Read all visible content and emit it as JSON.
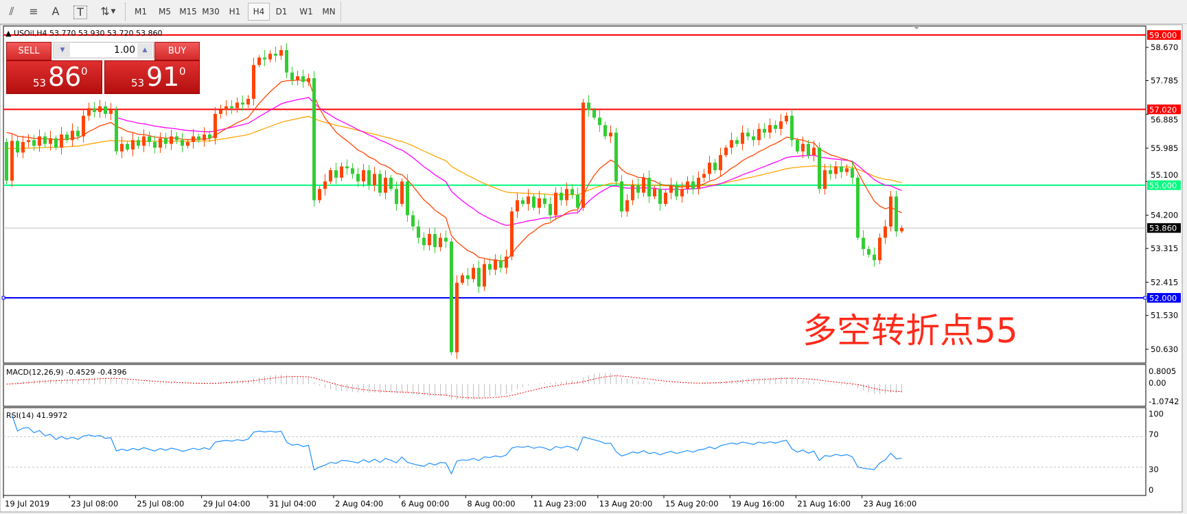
{
  "toolbar": {
    "icons": [
      "elliott-wave-icon",
      "fibonacci-icon",
      "text-icon",
      "text-label-icon",
      "arrows-icon"
    ],
    "icon_glyphs": [
      "⫽",
      "≡",
      "A",
      "T",
      "⇅"
    ],
    "timeframes": [
      "M1",
      "M5",
      "M15",
      "M30",
      "H1",
      "H4",
      "D1",
      "W1",
      "MN"
    ],
    "active_timeframe": "H4"
  },
  "chart": {
    "header": "▲ USOil,H4  53.770 53.930 53.720 53.860",
    "symbol": "USOil",
    "timeframe": "H4",
    "ohlc_last": {
      "open": 53.77,
      "high": 53.93,
      "low": 53.72,
      "close": 53.86
    },
    "first_open": 56.15,
    "closes": [
      55.12,
      56.18,
      55.87,
      56.15,
      56.2,
      56.05,
      56.3,
      56.1,
      56.25,
      56.0,
      56.35,
      56.2,
      56.45,
      56.3,
      56.85,
      57.05,
      56.95,
      57.1,
      56.9,
      57.0,
      55.9,
      56.1,
      55.95,
      56.2,
      56.05,
      56.3,
      56.15,
      56.0,
      56.25,
      56.1,
      56.3,
      56.2,
      56.05,
      56.15,
      56.3,
      56.2,
      56.35,
      56.25,
      56.9,
      57.0,
      57.1,
      57.05,
      57.2,
      57.15,
      57.3,
      58.2,
      58.4,
      58.35,
      58.5,
      58.45,
      58.6,
      58.0,
      57.8,
      57.9,
      57.75,
      57.85,
      54.6,
      54.9,
      55.1,
      55.4,
      55.2,
      55.5,
      55.45,
      55.3,
      55.1,
      55.4,
      55.0,
      55.3,
      54.8,
      55.2,
      54.9,
      54.5,
      55.1,
      54.2,
      53.9,
      53.6,
      53.4,
      53.7,
      53.35,
      53.6,
      53.5,
      50.55,
      52.4,
      52.6,
      52.5,
      52.8,
      52.3,
      52.9,
      52.75,
      53.0,
      52.8,
      53.1,
      54.3,
      54.6,
      54.5,
      54.7,
      54.4,
      54.65,
      54.5,
      54.2,
      54.8,
      54.6,
      54.9,
      54.75,
      54.4,
      57.2,
      57.0,
      56.8,
      56.6,
      56.3,
      56.4,
      55.1,
      54.3,
      54.6,
      55.0,
      54.8,
      55.2,
      54.7,
      54.9,
      54.5,
      54.8,
      55.0,
      54.7,
      54.9,
      55.1,
      54.9,
      55.2,
      55.3,
      55.6,
      55.4,
      55.8,
      56.0,
      56.2,
      56.1,
      56.4,
      56.3,
      56.2,
      56.5,
      56.4,
      56.6,
      56.5,
      56.7,
      56.85,
      56.2,
      55.9,
      56.1,
      55.8,
      56.0,
      54.9,
      55.4,
      55.3,
      55.5,
      55.35,
      55.45,
      55.2,
      53.6,
      53.3,
      53.15,
      53.0,
      53.6,
      53.9,
      54.7,
      53.77,
      53.86
    ],
    "price_ticks": [
      "58.670",
      "57.785",
      "56.885",
      "55.985",
      "55.100",
      "54.200",
      "53.315",
      "52.415",
      "51.530",
      "50.630"
    ],
    "levels": [
      {
        "price": 59.0,
        "label": "59.000",
        "color": "#ff0000"
      },
      {
        "price": 57.02,
        "label": "57.020",
        "color": "#ff0000"
      },
      {
        "price": 55.0,
        "label": "55.000",
        "color": "#00ff7f"
      },
      {
        "price": 52.0,
        "label": "52.000",
        "color": "#0000ff"
      }
    ],
    "bid": {
      "price": 53.86,
      "label": "53.860",
      "color": "#000000"
    },
    "colors": {
      "bull": "#ff4500",
      "bear": "#32cd32",
      "doji": "#000000",
      "ma_slow": "#ffa500",
      "ma_fast": "#ff4500",
      "ma_mid": "#ff00ff"
    },
    "annotation": "多空转折点55",
    "time_labels": [
      "19 Jul 2019",
      "23 Jul 08:00",
      "25 Jul 08:00",
      "29 Jul 04:00",
      "31 Jul 04:00",
      "2 Aug 04:00",
      "6 Aug 00:00",
      "8 Aug 00:00",
      "11 Aug 23:00",
      "13 Aug 20:00",
      "15 Aug 20:00",
      "19 Aug 16:00",
      "21 Aug 16:00",
      "23 Aug 16:00"
    ]
  },
  "macd": {
    "label": "MACD(12,26,9) -0.4529 -0.4396",
    "ticks": [
      "0.8005",
      "0.00",
      "-1.0742"
    ],
    "hist_color": "#c0c0c0",
    "signal_color": "#ff0000"
  },
  "rsi": {
    "label": "RSI(14) 41.9972",
    "ticks": [
      "100",
      "70",
      "30",
      "0"
    ],
    "color": "#1e90ff"
  },
  "trade": {
    "sell_label": "SELL",
    "buy_label": "BUY",
    "lot": "1.00",
    "sell": {
      "small": "53",
      "big": "86",
      "sup": "0"
    },
    "buy": {
      "small": "53",
      "big": "91",
      "sup": "0"
    }
  }
}
